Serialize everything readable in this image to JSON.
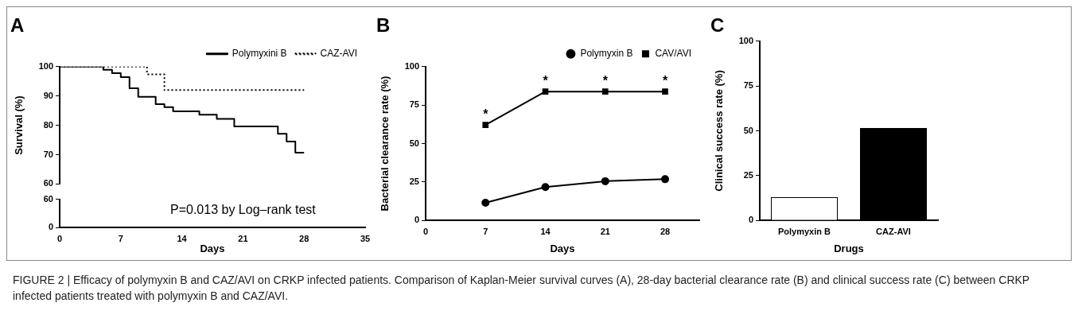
{
  "chart_data": [
    {
      "type": "step",
      "title": "A",
      "ylabel": "Survival (%)",
      "xlim": [
        0,
        35
      ],
      "ylim": [
        60,
        100
      ],
      "yticks": [
        60,
        70,
        80,
        90,
        100
      ],
      "tick_labels": "y",
      "grid": false,
      "legend": "top right",
      "marker": "none",
      "annotations": [
        "FIGURE 2 | Efficacy of polymyxin B and CAZ/AVI on CRKP infected patients. Comparison of Kaplan-Meier survival curves (A), 28-day bacterial clearance rate (B) and clinical success rate (C) between CRKP infected patients treated with polymyxin B and CAZ/AVI."
      ],
      "series": [
        {
          "name": "Polymyxini B",
          "color": "#000000",
          "line_style": "solid",
          "x": [
            0,
            5,
            6,
            7,
            8,
            9,
            11,
            12,
            13,
            16,
            18,
            20,
            25,
            26,
            27,
            28
          ],
          "values": [
            100,
            98.9,
            97.8,
            96.4,
            92.6,
            89.7,
            87.2,
            86.2,
            84.8,
            83.6,
            82.2,
            79.6,
            77.1,
            74.5,
            70.7,
            70.7
          ]
        },
        {
          "name": "CAZ-AVI",
          "color": "#000000",
          "line_style": "dotted",
          "x": [
            0,
            10,
            12,
            28
          ],
          "values": [
            100,
            97.4,
            92,
            92
          ]
        }
      ]
    },
    {
      "type": "step",
      "xlabel": "Days",
      "xlim": [
        0,
        35
      ],
      "xticks": [
        0,
        7,
        14,
        21,
        28,
        35
      ],
      "ylim": [
        0,
        60
      ],
      "yticks": [
        0,
        60
      ],
      "grid": false,
      "annotations": [
        "P=0.013 by Log–rank test"
      ]
    },
    {
      "type": "line",
      "title": "B",
      "xlabel": "Days",
      "ylabel": "Bacterial clearance rate (%)",
      "xlim": [
        0,
        32
      ],
      "xticks": [
        0,
        7,
        14,
        21,
        28
      ],
      "ylim": [
        0,
        100
      ],
      "yticks": [
        0,
        25,
        50,
        75,
        100
      ],
      "grid": false,
      "legend": "top right",
      "annotations": [
        {
          "text": "*",
          "x": 7,
          "y": 62.1
        },
        {
          "text": "*",
          "x": 14,
          "y": 83.8
        },
        {
          "text": "*",
          "x": 21,
          "y": 83.8
        },
        {
          "text": "*",
          "x": 28,
          "y": 83.8
        }
      ],
      "series": [
        {
          "name": "Polymyxin B",
          "color": "#000000",
          "marker": "circle",
          "x": [
            7,
            14,
            21,
            28
          ],
          "values": [
            11.5,
            21.7,
            25.5,
            26.8
          ]
        },
        {
          "name": "CAV/AVI",
          "color": "#000000",
          "marker": "square",
          "x": [
            7,
            14,
            21,
            28
          ],
          "values": [
            62.1,
            83.8,
            83.8,
            83.8
          ]
        }
      ]
    },
    {
      "type": "bar",
      "title": "C",
      "xlabel": "Drugs",
      "ylabel": "Clinical success rate (%)",
      "categories": [
        "Polymyxin B",
        "CAZ-AVI"
      ],
      "values": [
        12.9,
        51.6
      ],
      "colors": [
        "#ffffff",
        "#000000"
      ],
      "ylim": [
        0,
        100
      ],
      "yticks": [
        0,
        25,
        50,
        75,
        100
      ],
      "grid": false
    }
  ]
}
